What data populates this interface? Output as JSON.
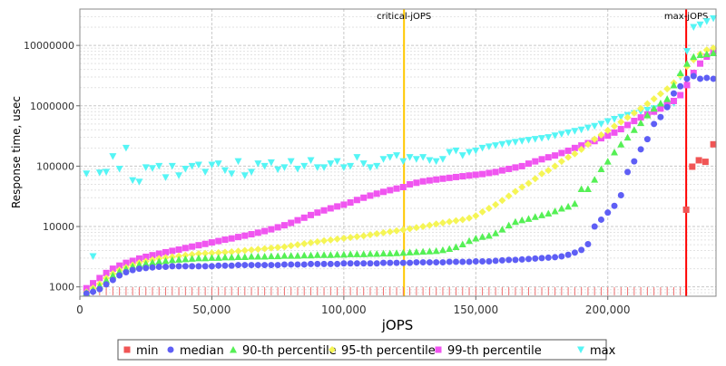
{
  "chart_data": {
    "type": "scatter",
    "title": "",
    "xlabel": "jOPS",
    "ylabel": "Response time, usec",
    "xlim": [
      0,
      241000
    ],
    "ylim": [
      700,
      40000000
    ],
    "yscale": "log",
    "grid": true,
    "legend_position": "bottom",
    "x_ticks": [
      0,
      50000,
      100000,
      150000,
      200000
    ],
    "x_tick_labels": [
      "0",
      "50,000",
      "100,000",
      "150,000",
      "200,000"
    ],
    "y_ticks": [
      1000,
      10000,
      100000,
      1000000,
      10000000
    ],
    "y_tick_labels": [
      "1000",
      "10000",
      "100000",
      "1000000",
      "10000000"
    ],
    "markers": [
      {
        "label": "critical-jOPS",
        "x": 122800,
        "color": "#ffc800"
      },
      {
        "label": "max-jOPS",
        "x": 229700,
        "color": "#ff0000"
      }
    ],
    "series": [
      {
        "name": "min",
        "color": "#f05555",
        "shape": "square",
        "x": [
          229700,
          232000,
          234500,
          237000,
          240000
        ],
        "y": [
          19000,
          98000,
          125000,
          118000,
          230000
        ]
      },
      {
        "name": "median",
        "color": "#5e5ef5",
        "shape": "circle",
        "x": [
          2500,
          5000,
          7500,
          10000,
          12500,
          15000,
          17500,
          20000,
          22500,
          25000,
          27500,
          30000,
          32500,
          35000,
          37500,
          40000,
          42500,
          45000,
          47500,
          50000,
          52500,
          55000,
          57500,
          60000,
          62500,
          65000,
          67500,
          70000,
          72500,
          75000,
          77500,
          80000,
          82500,
          85000,
          87500,
          90000,
          92500,
          95000,
          97500,
          100000,
          102500,
          105000,
          107500,
          110000,
          112500,
          115000,
          117500,
          120000,
          122500,
          125000,
          127500,
          130000,
          132500,
          135000,
          137500,
          140000,
          142500,
          145000,
          147500,
          150000,
          152500,
          155000,
          157500,
          160000,
          162500,
          165000,
          167500,
          170000,
          172500,
          175000,
          177500,
          180000,
          182500,
          185000,
          187500,
          190000,
          192500,
          195000,
          197500,
          200000,
          202500,
          205000,
          207500,
          210000,
          212500,
          215000,
          217500,
          220000,
          222500,
          225000,
          227500,
          230000,
          232500,
          235000,
          237500,
          240000
        ],
        "y": [
          780,
          830,
          920,
          1100,
          1300,
          1550,
          1750,
          1900,
          2000,
          2050,
          2100,
          2150,
          2150,
          2200,
          2200,
          2200,
          2200,
          2200,
          2200,
          2200,
          2250,
          2250,
          2250,
          2300,
          2300,
          2300,
          2300,
          2300,
          2300,
          2300,
          2350,
          2350,
          2350,
          2350,
          2400,
          2400,
          2400,
          2400,
          2400,
          2450,
          2450,
          2450,
          2450,
          2450,
          2450,
          2500,
          2500,
          2500,
          2500,
          2500,
          2550,
          2550,
          2550,
          2550,
          2550,
          2600,
          2600,
          2600,
          2600,
          2650,
          2650,
          2650,
          2700,
          2750,
          2800,
          2800,
          2850,
          2900,
          2950,
          3000,
          3050,
          3100,
          3200,
          3400,
          3700,
          4100,
          5100,
          10000,
          13000,
          17000,
          22000,
          33000,
          80000,
          120000,
          190000,
          280000,
          500000,
          650000,
          950000,
          1600000,
          2100000,
          2800000,
          3100000,
          2800000,
          2900000,
          2800000
        ]
      },
      {
        "name": "90-th percentile",
        "color": "#55f055",
        "shape": "triangle-up",
        "x": [
          2500,
          5000,
          7500,
          10000,
          12500,
          15000,
          17500,
          20000,
          22500,
          25000,
          27500,
          30000,
          32500,
          35000,
          37500,
          40000,
          42500,
          45000,
          47500,
          50000,
          52500,
          55000,
          57500,
          60000,
          62500,
          65000,
          67500,
          70000,
          72500,
          75000,
          77500,
          80000,
          82500,
          85000,
          87500,
          90000,
          92500,
          95000,
          97500,
          100000,
          102500,
          105000,
          107500,
          110000,
          112500,
          115000,
          117500,
          120000,
          122500,
          125000,
          127500,
          130000,
          132500,
          135000,
          137500,
          140000,
          142500,
          145000,
          147500,
          150000,
          152500,
          155000,
          157500,
          160000,
          162500,
          165000,
          167500,
          170000,
          172500,
          175000,
          177500,
          180000,
          182500,
          185000,
          187500,
          190000,
          192500,
          195000,
          197500,
          200000,
          202500,
          205000,
          207500,
          210000,
          212500,
          215000,
          217500,
          220000,
          222500,
          225000,
          227500,
          230000,
          232500,
          235000,
          237500,
          240000
        ],
        "y": [
          800,
          900,
          1050,
          1300,
          1550,
          1800,
          2000,
          2200,
          2350,
          2450,
          2550,
          2650,
          2700,
          2800,
          2850,
          2900,
          2950,
          3000,
          3000,
          3050,
          3050,
          3100,
          3100,
          3150,
          3150,
          3200,
          3200,
          3200,
          3250,
          3250,
          3300,
          3300,
          3300,
          3350,
          3350,
          3400,
          3400,
          3400,
          3450,
          3450,
          3500,
          3500,
          3500,
          3550,
          3550,
          3600,
          3600,
          3650,
          3700,
          3750,
          3800,
          3850,
          3900,
          3950,
          4100,
          4300,
          4600,
          5100,
          5800,
          6400,
          6800,
          7100,
          7800,
          9000,
          10500,
          12000,
          12800,
          13500,
          14500,
          15500,
          16500,
          18000,
          20000,
          21500,
          24000,
          42000,
          42000,
          60000,
          90000,
          120000,
          170000,
          230000,
          300000,
          400000,
          520000,
          700000,
          900000,
          1100000,
          1300000,
          2200000,
          3500000,
          5000000,
          6500000,
          7000000,
          7200000,
          7500000
        ]
      },
      {
        "name": "95-th percentile",
        "color": "#f5f555",
        "shape": "diamond",
        "x": [
          2500,
          5000,
          7500,
          10000,
          12500,
          15000,
          17500,
          20000,
          22500,
          25000,
          27500,
          30000,
          32500,
          35000,
          37500,
          40000,
          42500,
          45000,
          47500,
          50000,
          52500,
          55000,
          57500,
          60000,
          62500,
          65000,
          67500,
          70000,
          72500,
          75000,
          77500,
          80000,
          82500,
          85000,
          87500,
          90000,
          92500,
          95000,
          97500,
          100000,
          102500,
          105000,
          107500,
          110000,
          112500,
          115000,
          117500,
          120000,
          122500,
          125000,
          127500,
          130000,
          132500,
          135000,
          137500,
          140000,
          142500,
          145000,
          147500,
          150000,
          152500,
          155000,
          157500,
          160000,
          162500,
          165000,
          167500,
          170000,
          172500,
          175000,
          177500,
          180000,
          182500,
          185000,
          187500,
          190000,
          192500,
          195000,
          197500,
          200000,
          202500,
          205000,
          207500,
          210000,
          212500,
          215000,
          217500,
          220000,
          222500,
          225000,
          227500,
          230000,
          232500,
          235000,
          237500,
          240000
        ],
        "y": [
          820,
          950,
          1120,
          1400,
          1650,
          1900,
          2100,
          2300,
          2500,
          2650,
          2800,
          2950,
          3050,
          3150,
          3250,
          3350,
          3450,
          3550,
          3600,
          3650,
          3700,
          3750,
          3800,
          3900,
          4000,
          4100,
          4200,
          4300,
          4400,
          4500,
          4600,
          4800,
          5000,
          5200,
          5400,
          5600,
          5800,
          6000,
          6200,
          6400,
          6600,
          6800,
          7000,
          7300,
          7600,
          7900,
          8200,
          8500,
          8800,
          9200,
          9600,
          10000,
          10500,
          11000,
          11500,
          12000,
          12500,
          13000,
          13800,
          15000,
          17500,
          20000,
          23000,
          27000,
          32000,
          38000,
          45000,
          52000,
          62000,
          75000,
          85000,
          100000,
          120000,
          140000,
          160000,
          190000,
          230000,
          280000,
          330000,
          390000,
          460000,
          540000,
          640000,
          760000,
          900000,
          1080000,
          1300000,
          1580000,
          1900000,
          2400000,
          3200000,
          4500000,
          5800000,
          7200000,
          8400000,
          9000000
        ]
      },
      {
        "name": "99-th percentile",
        "color": "#f055f0",
        "shape": "square",
        "x": [
          2500,
          5000,
          7500,
          10000,
          12500,
          15000,
          17500,
          20000,
          22500,
          25000,
          27500,
          30000,
          32500,
          35000,
          37500,
          40000,
          42500,
          45000,
          47500,
          50000,
          52500,
          55000,
          57500,
          60000,
          62500,
          65000,
          67500,
          70000,
          72500,
          75000,
          77500,
          80000,
          82500,
          85000,
          87500,
          90000,
          92500,
          95000,
          97500,
          100000,
          102500,
          105000,
          107500,
          110000,
          112500,
          115000,
          117500,
          120000,
          122500,
          125000,
          127500,
          130000,
          132500,
          135000,
          137500,
          140000,
          142500,
          145000,
          147500,
          150000,
          152500,
          155000,
          157500,
          160000,
          162500,
          165000,
          167500,
          170000,
          172500,
          175000,
          177500,
          180000,
          182500,
          185000,
          187500,
          190000,
          192500,
          195000,
          197500,
          200000,
          202500,
          205000,
          207500,
          210000,
          212500,
          215000,
          217500,
          220000,
          222500,
          225000,
          227500,
          230000,
          232500,
          235000,
          237500,
          240000
        ],
        "y": [
          950,
          1150,
          1400,
          1700,
          2000,
          2250,
          2500,
          2700,
          2950,
          3150,
          3350,
          3550,
          3750,
          3950,
          4150,
          4400,
          4650,
          4900,
          5150,
          5450,
          5750,
          6050,
          6350,
          6700,
          7050,
          7450,
          7900,
          8400,
          9000,
          9700,
          10500,
          11500,
          12700,
          14000,
          15500,
          17000,
          18500,
          20000,
          21500,
          23000,
          25000,
          27500,
          30000,
          32500,
          35000,
          37500,
          40000,
          42500,
          45000,
          50000,
          53000,
          56000,
          58000,
          60000,
          62000,
          64000,
          66000,
          68000,
          70000,
          72000,
          74000,
          77000,
          80000,
          85000,
          90000,
          95000,
          100000,
          110000,
          120000,
          130000,
          140000,
          150000,
          165000,
          180000,
          200000,
          220000,
          240000,
          260000,
          290000,
          320000,
          360000,
          410000,
          480000,
          560000,
          640000,
          720000,
          800000,
          900000,
          1050000,
          1200000,
          1500000,
          2200000,
          3500000,
          5000000,
          6500000,
          8000000
        ]
      },
      {
        "name": "max",
        "color": "#55f5f5",
        "shape": "triangle-down",
        "x": [
          2500,
          5000,
          7500,
          10000,
          12500,
          15000,
          17500,
          20000,
          22500,
          25000,
          27500,
          30000,
          32500,
          35000,
          37500,
          40000,
          42500,
          45000,
          47500,
          50000,
          52500,
          55000,
          57500,
          60000,
          62500,
          65000,
          67500,
          70000,
          72500,
          75000,
          77500,
          80000,
          82500,
          85000,
          87500,
          90000,
          92500,
          95000,
          97500,
          100000,
          102500,
          105000,
          107500,
          110000,
          112500,
          115000,
          117500,
          120000,
          122500,
          125000,
          127500,
          130000,
          132500,
          135000,
          137500,
          140000,
          142500,
          145000,
          147500,
          150000,
          152500,
          155000,
          157500,
          160000,
          162500,
          165000,
          167500,
          170000,
          172500,
          175000,
          177500,
          180000,
          182500,
          185000,
          187500,
          190000,
          192500,
          195000,
          197500,
          200000,
          202500,
          205000,
          207500,
          210000,
          212500,
          215000,
          217500,
          220000,
          222500,
          225000,
          227500,
          230000,
          232500,
          235000,
          237500,
          240000
        ],
        "y": [
          75000,
          3200,
          78000,
          80000,
          145000,
          90000,
          200000,
          58000,
          55000,
          95000,
          92000,
          100000,
          65000,
          100000,
          70000,
          90000,
          100000,
          105000,
          80000,
          105000,
          110000,
          85000,
          75000,
          120000,
          70000,
          80000,
          110000,
          100000,
          115000,
          88000,
          95000,
          120000,
          90000,
          100000,
          125000,
          95000,
          95000,
          110000,
          120000,
          95000,
          100000,
          140000,
          110000,
          95000,
          100000,
          130000,
          140000,
          150000,
          120000,
          140000,
          130000,
          140000,
          125000,
          120000,
          130000,
          170000,
          180000,
          150000,
          170000,
          180000,
          200000,
          210000,
          220000,
          230000,
          240000,
          250000,
          260000,
          270000,
          280000,
          290000,
          300000,
          320000,
          340000,
          360000,
          380000,
          400000,
          430000,
          460000,
          500000,
          550000,
          600000,
          650000,
          700000,
          750000,
          800000,
          850000,
          900000,
          950000,
          1000000,
          1100000,
          3000000,
          8000000,
          20000000,
          22000000,
          25000000,
          28000000
        ]
      }
    ]
  }
}
